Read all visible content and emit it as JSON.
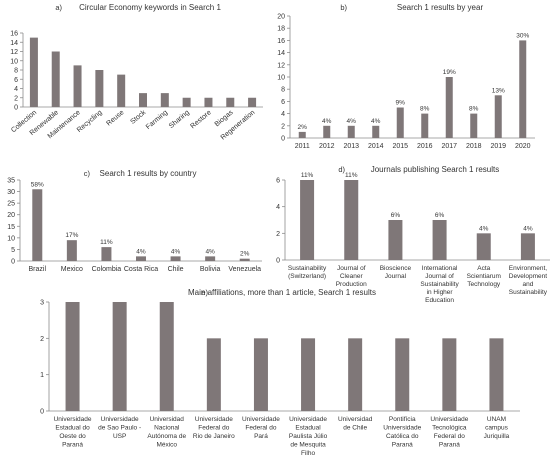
{
  "colors": {
    "bar": "#7f7778",
    "axis": "#8c8c8c",
    "text": "#333333"
  },
  "chart_data": [
    {
      "id": "a",
      "type": "bar",
      "letter": "a)",
      "title": "Circular Economy keywords in Search 1",
      "categories": [
        "Collection",
        "Renewable",
        "Maintenance",
        "Recycling",
        "Reuse",
        "Stock",
        "Farming",
        "Sharing",
        "Restore",
        "Biogas",
        "Regeneration"
      ],
      "values": [
        15,
        12,
        9,
        8,
        7,
        3,
        3,
        2,
        2,
        2,
        2
      ],
      "ylim": [
        0,
        16
      ],
      "yticks": [
        0,
        2,
        4,
        6,
        8,
        10,
        12,
        14,
        16
      ],
      "data_labels": []
    },
    {
      "id": "b",
      "type": "bar",
      "letter": "b)",
      "title": "Search 1 results by year",
      "categories": [
        "2011",
        "2012",
        "2013",
        "2014",
        "2015",
        "2016",
        "2017",
        "2018",
        "2019",
        "2020"
      ],
      "values": [
        1,
        2,
        2,
        2,
        5,
        4,
        10,
        4,
        7,
        16
      ],
      "ylim": [
        0,
        20
      ],
      "yticks": [
        0,
        2,
        4,
        6,
        8,
        10,
        12,
        14,
        16,
        18,
        20
      ],
      "data_labels": [
        "2%",
        "4%",
        "4%",
        "4%",
        "9%",
        "8%",
        "19%",
        "8%",
        "13%",
        "30%"
      ]
    },
    {
      "id": "c",
      "type": "bar",
      "letter": "c)",
      "title": "Search 1 results by country",
      "categories": [
        "Brazil",
        "Mexico",
        "Colombia",
        "Costa Rica",
        "Chile",
        "Bolivia",
        "Venezuela"
      ],
      "values": [
        31,
        9,
        6,
        2,
        2,
        2,
        1
      ],
      "ylim": [
        0,
        35
      ],
      "yticks": [
        0,
        5,
        10,
        15,
        20,
        25,
        30,
        35
      ],
      "data_labels": [
        "58%",
        "17%",
        "11%",
        "4%",
        "4%",
        "4%",
        "2%"
      ]
    },
    {
      "id": "d",
      "type": "bar",
      "letter": "d)",
      "title": "Journals publishing Search 1 results",
      "categories": [
        [
          "Sustainability",
          "(Switzerland)"
        ],
        [
          "Journal of",
          "Cleaner",
          "Production"
        ],
        [
          "Bioscience",
          "Journal"
        ],
        [
          "International",
          "Journal of",
          "Sustainability",
          "in Higher",
          "Education"
        ],
        [
          "Acta",
          "Scientiarum",
          "Technology"
        ],
        [
          "Environment,",
          "Development",
          "and",
          "Sustainability"
        ]
      ],
      "values": [
        6,
        6,
        3,
        3,
        2,
        2
      ],
      "ylim": [
        0,
        6
      ],
      "yticks": [
        0,
        2,
        4,
        6
      ],
      "data_labels": [
        "11%",
        "11%",
        "6%",
        "6%",
        "4%",
        "4%"
      ]
    },
    {
      "id": "e",
      "type": "bar",
      "letter": "e)",
      "title": "Main affiliations, more than 1 article, Search 1 results",
      "categories": [
        [
          "Universidade",
          "Estadual do",
          "Oeste do",
          "Paraná"
        ],
        [
          "Universidade",
          "de Sao Paulo -",
          "USP"
        ],
        [
          "Universidad",
          "Nacional",
          "Autónoma de",
          "México"
        ],
        [
          "Universidade",
          "Federal do",
          "Rio de Janeiro"
        ],
        [
          "Universidade",
          "Federal do",
          "Pará"
        ],
        [
          "Universidade",
          "Estadual",
          "Paulista Júlio",
          "de Mesquita",
          "Filho"
        ],
        [
          "Universidad",
          "de Chile"
        ],
        [
          "Pontifícia",
          "Universidade",
          "Católica do",
          "Paraná"
        ],
        [
          "Universidade",
          "Tecnológica",
          "Federal do",
          "Paraná"
        ],
        [
          "UNAM",
          "campus",
          "Juriquilla"
        ]
      ],
      "values": [
        3,
        3,
        3,
        2,
        2,
        2,
        2,
        2,
        2,
        2
      ],
      "ylim": [
        0,
        3
      ],
      "yticks": [
        0,
        1,
        2,
        3
      ],
      "data_labels": []
    }
  ]
}
